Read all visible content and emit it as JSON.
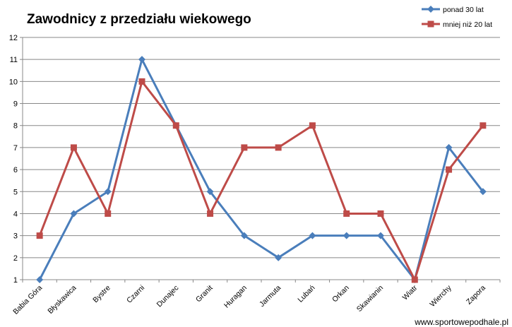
{
  "page": {
    "source_credit": "www.sportowepodhale.pl"
  },
  "chart_data": {
    "type": "line",
    "title": "Zawodnicy z przedziału wiekowego",
    "xlabel": "",
    "ylabel": "",
    "ylim": [
      1,
      12
    ],
    "yticks": [
      1,
      2,
      3,
      4,
      5,
      6,
      7,
      8,
      9,
      10,
      11,
      12
    ],
    "grid": true,
    "legend_position": "top-right",
    "categories": [
      "Babia Góra",
      "Błyskawica",
      "Bystre",
      "Czarni",
      "Dunajec",
      "Granit",
      "Huragan",
      "Jarmuta",
      "Lubań",
      "Orkan",
      "Skawianin",
      "Wiatr",
      "Wierchy",
      "Zapora"
    ],
    "series": [
      {
        "name": "ponad 30 lat",
        "color": "#4a7ebb",
        "marker": "diamond",
        "values": [
          1,
          4,
          5,
          11,
          8,
          5,
          3,
          2,
          3,
          3,
          3,
          1,
          7,
          5
        ]
      },
      {
        "name": "mniej niż 20 lat",
        "color": "#be4b48",
        "marker": "square",
        "values": [
          3,
          7,
          4,
          10,
          8,
          4,
          7,
          7,
          8,
          4,
          4,
          1,
          6,
          8
        ]
      }
    ]
  }
}
